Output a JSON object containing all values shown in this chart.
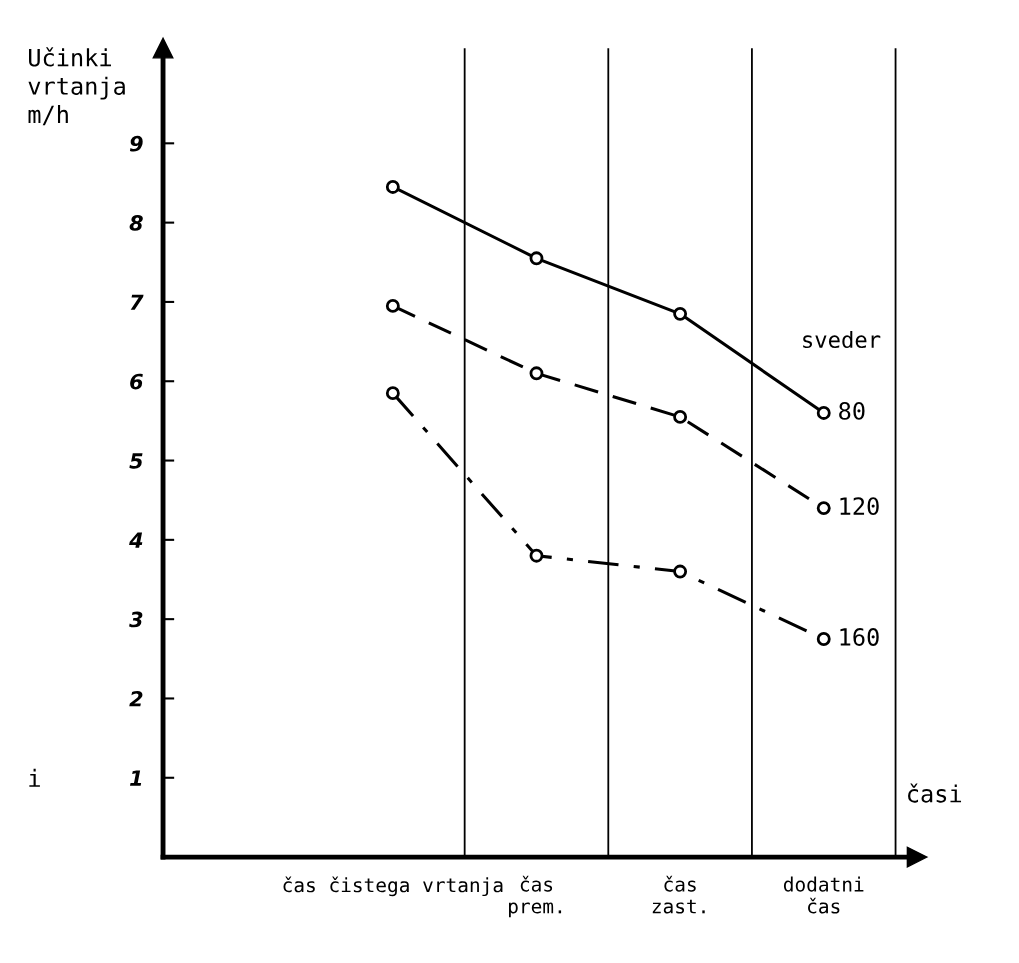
{
  "chart_data": {
    "type": "line",
    "ylabel": "Učinki\nvrtanja\nm/h",
    "xlabel": "časi",
    "categories": [
      "čas čistega vrtanja",
      "čas\nprem.",
      "čas\nzast.",
      "dodatni\nčas"
    ],
    "series": [
      {
        "name": "80",
        "color": "#000000",
        "line_style": "solid",
        "values": [
          8.45,
          7.55,
          6.85,
          5.6
        ]
      },
      {
        "name": "120",
        "color": "#000000",
        "line_style": "dashed",
        "values": [
          6.95,
          6.1,
          5.55,
          4.4
        ]
      },
      {
        "name": "160",
        "color": "#000000",
        "line_style": "dashdot",
        "values": [
          5.85,
          3.8,
          3.6,
          2.75
        ]
      }
    ],
    "marker": "circle",
    "ylim": [
      0,
      10.2
    ],
    "yticks": [
      1,
      2,
      3,
      4,
      5,
      6,
      7,
      8,
      9
    ],
    "annotations": [
      "sveder",
      "i"
    ],
    "legend": false,
    "grid": false
  }
}
